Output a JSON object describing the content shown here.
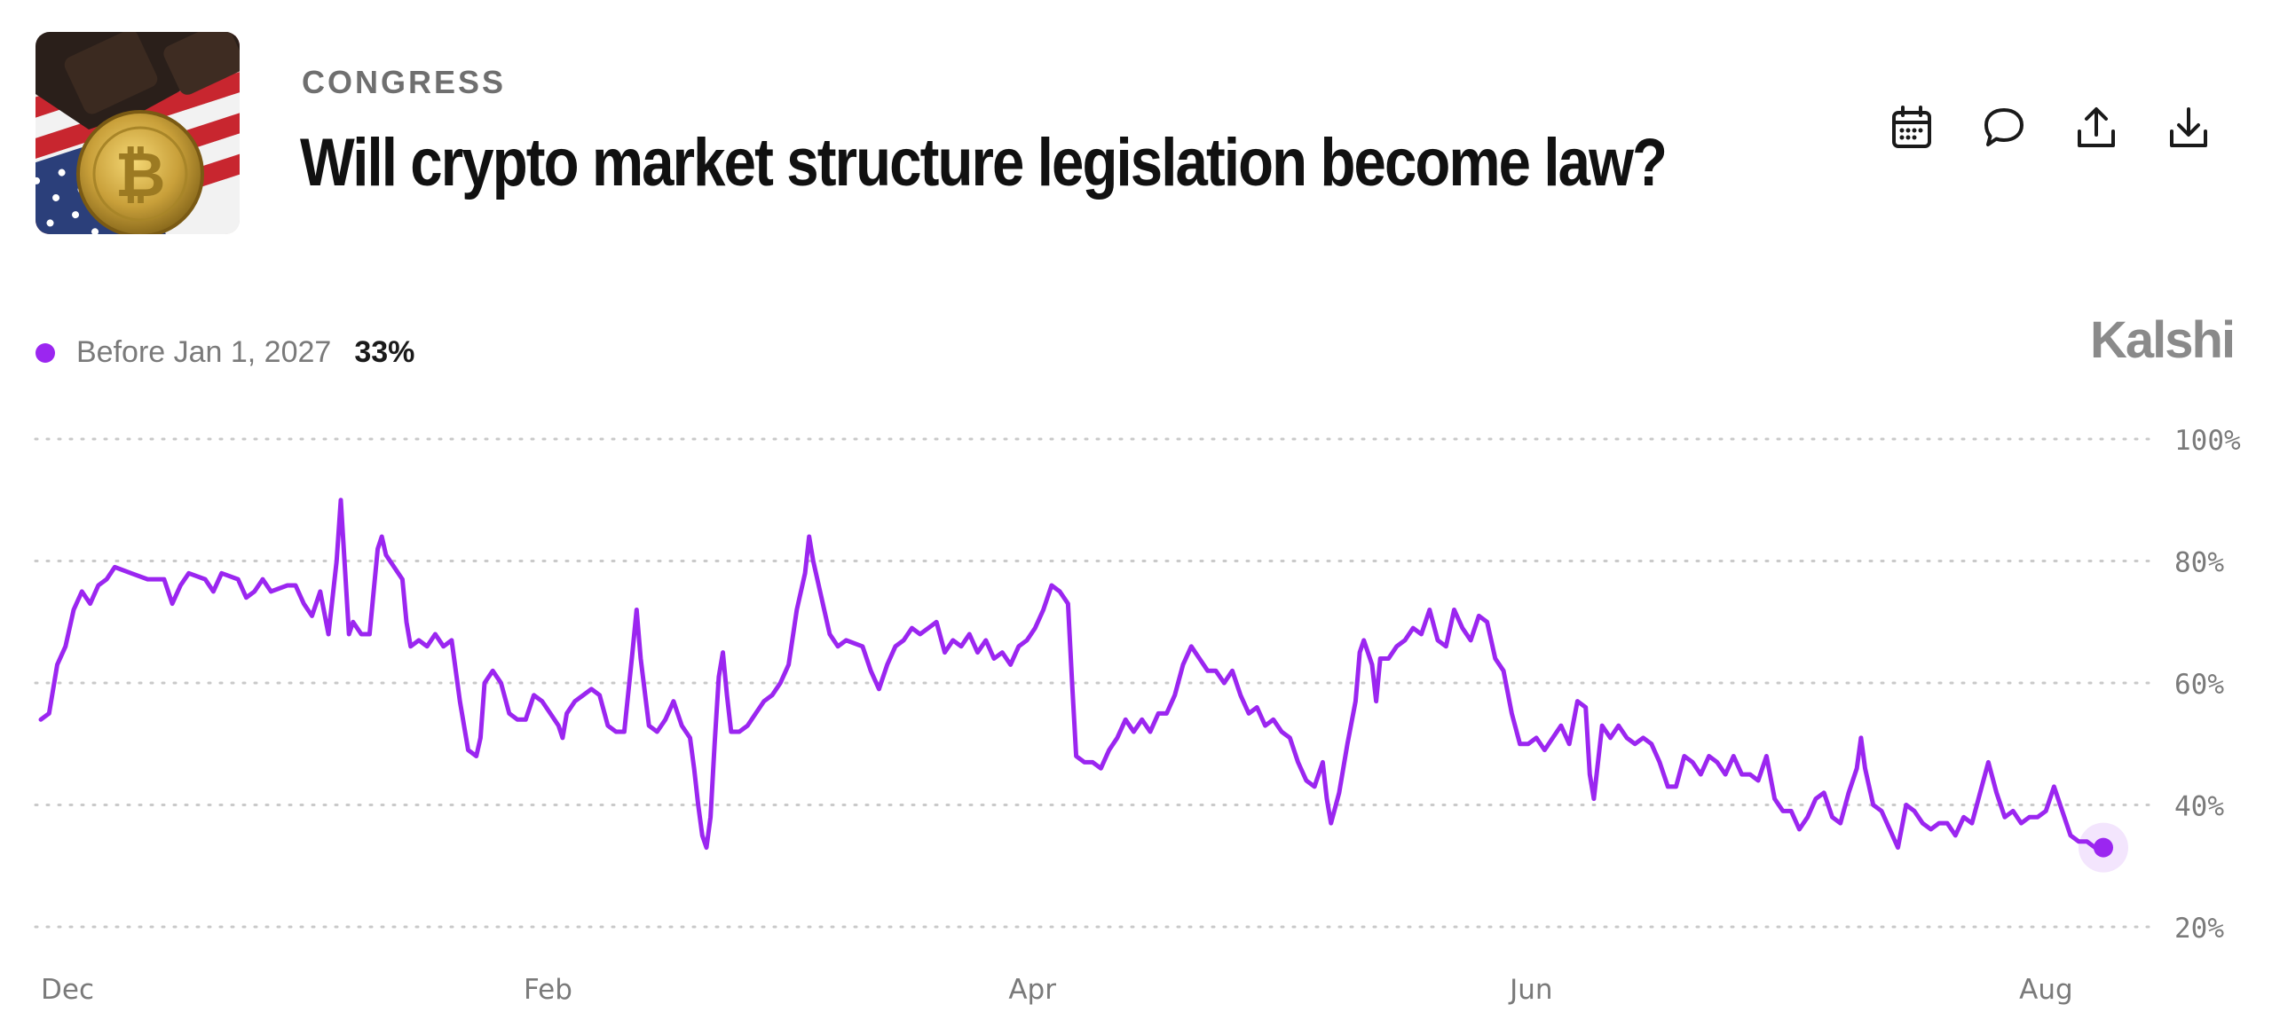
{
  "header": {
    "category": "CONGRESS",
    "title": "Will crypto market structure legislation become law?",
    "thumbnail_icon": "bitcoin-gavel-flag-image"
  },
  "actions": [
    {
      "name": "calendar-icon"
    },
    {
      "name": "comment-icon"
    },
    {
      "name": "share-icon"
    },
    {
      "name": "download-icon"
    }
  ],
  "legend": {
    "label": "Before Jan 1, 2027",
    "value": "33%",
    "color": "#9b26f0"
  },
  "brand": "Kalshi",
  "chart_data": {
    "type": "line",
    "title": "",
    "xlabel": "",
    "ylabel": "",
    "y_ticks": [
      "100%",
      "80%",
      "60%",
      "40%",
      "20%"
    ],
    "y_tick_values": [
      100,
      80,
      60,
      40,
      20
    ],
    "x_ticks": [
      "Dec",
      "Feb",
      "Apr",
      "Jun",
      "Aug"
    ],
    "x_tick_days": [
      0,
      62,
      121,
      182,
      244
    ],
    "ylim": [
      20,
      100
    ],
    "xlim_days": [
      0,
      251
    ],
    "grid": "horizontal-dotted",
    "legend_position": "top-left",
    "series": [
      {
        "name": "Before Jan 1, 2027",
        "color": "#9b26f0",
        "points": [
          [
            0,
            54
          ],
          [
            1,
            55
          ],
          [
            2,
            63
          ],
          [
            3,
            66
          ],
          [
            4,
            72
          ],
          [
            5,
            75
          ],
          [
            6,
            73
          ],
          [
            7,
            76
          ],
          [
            8,
            77
          ],
          [
            9,
            79
          ],
          [
            11,
            78
          ],
          [
            13,
            77
          ],
          [
            15,
            77
          ],
          [
            16,
            73
          ],
          [
            17,
            76
          ],
          [
            18,
            78
          ],
          [
            20,
            77
          ],
          [
            21,
            75
          ],
          [
            22,
            78
          ],
          [
            24,
            77
          ],
          [
            25,
            74
          ],
          [
            26,
            75
          ],
          [
            27,
            77
          ],
          [
            28,
            75
          ],
          [
            30,
            76
          ],
          [
            31,
            76
          ],
          [
            32,
            73
          ],
          [
            33,
            71
          ],
          [
            34,
            75
          ],
          [
            35,
            68
          ],
          [
            36,
            80
          ],
          [
            36.5,
            90
          ],
          [
            37,
            79
          ],
          [
            37.5,
            68
          ],
          [
            38,
            70
          ],
          [
            39,
            68
          ],
          [
            40,
            68
          ],
          [
            41,
            82
          ],
          [
            41.5,
            84
          ],
          [
            42,
            81
          ],
          [
            43,
            79
          ],
          [
            44,
            77
          ],
          [
            44.5,
            70
          ],
          [
            45,
            66
          ],
          [
            46,
            67
          ],
          [
            47,
            66
          ],
          [
            48,
            68
          ],
          [
            49,
            66
          ],
          [
            50,
            67
          ],
          [
            51,
            57
          ],
          [
            52,
            49
          ],
          [
            53,
            48
          ],
          [
            53.5,
            51
          ],
          [
            54,
            60
          ],
          [
            55,
            62
          ],
          [
            56,
            60
          ],
          [
            57,
            55
          ],
          [
            58,
            54
          ],
          [
            59,
            54
          ],
          [
            60,
            58
          ],
          [
            61,
            57
          ],
          [
            62,
            55
          ],
          [
            63,
            53
          ],
          [
            63.5,
            51
          ],
          [
            64,
            55
          ],
          [
            65,
            57
          ],
          [
            66,
            58
          ],
          [
            67,
            59
          ],
          [
            68,
            58
          ],
          [
            69,
            53
          ],
          [
            70,
            52
          ],
          [
            71,
            52
          ],
          [
            72,
            65
          ],
          [
            72.5,
            72
          ],
          [
            73,
            64
          ],
          [
            74,
            53
          ],
          [
            75,
            52
          ],
          [
            76,
            54
          ],
          [
            77,
            57
          ],
          [
            78,
            53
          ],
          [
            79,
            51
          ],
          [
            79.5,
            46
          ],
          [
            80,
            40
          ],
          [
            80.5,
            35
          ],
          [
            81,
            33
          ],
          [
            81.5,
            38
          ],
          [
            82,
            50
          ],
          [
            82.5,
            61
          ],
          [
            83,
            65
          ],
          [
            83.5,
            58
          ],
          [
            84,
            52
          ],
          [
            85,
            52
          ],
          [
            86,
            53
          ],
          [
            87,
            55
          ],
          [
            88,
            57
          ],
          [
            89,
            58
          ],
          [
            90,
            60
          ],
          [
            91,
            63
          ],
          [
            92,
            72
          ],
          [
            93,
            78
          ],
          [
            93.5,
            84
          ],
          [
            94,
            80
          ],
          [
            95,
            74
          ],
          [
            96,
            68
          ],
          [
            97,
            66
          ],
          [
            98,
            67
          ],
          [
            100,
            66
          ],
          [
            101,
            62
          ],
          [
            102,
            59
          ],
          [
            103,
            63
          ],
          [
            104,
            66
          ],
          [
            105,
            67
          ],
          [
            106,
            69
          ],
          [
            107,
            68
          ],
          [
            108,
            69
          ],
          [
            109,
            70
          ],
          [
            110,
            65
          ],
          [
            111,
            67
          ],
          [
            112,
            66
          ],
          [
            113,
            68
          ],
          [
            114,
            65
          ],
          [
            115,
            67
          ],
          [
            116,
            64
          ],
          [
            117,
            65
          ],
          [
            118,
            63
          ],
          [
            119,
            66
          ],
          [
            120,
            67
          ],
          [
            121,
            69
          ],
          [
            122,
            72
          ],
          [
            123,
            76
          ],
          [
            124,
            75
          ],
          [
            125,
            73
          ],
          [
            125.5,
            60
          ],
          [
            126,
            48
          ],
          [
            127,
            47
          ],
          [
            128,
            47
          ],
          [
            129,
            46
          ],
          [
            130,
            49
          ],
          [
            131,
            51
          ],
          [
            132,
            54
          ],
          [
            133,
            52
          ],
          [
            134,
            54
          ],
          [
            135,
            52
          ],
          [
            136,
            55
          ],
          [
            137,
            55
          ],
          [
            138,
            58
          ],
          [
            139,
            63
          ],
          [
            140,
            66
          ],
          [
            141,
            64
          ],
          [
            142,
            62
          ],
          [
            143,
            62
          ],
          [
            144,
            60
          ],
          [
            145,
            62
          ],
          [
            146,
            58
          ],
          [
            147,
            55
          ],
          [
            148,
            56
          ],
          [
            149,
            53
          ],
          [
            150,
            54
          ],
          [
            151,
            52
          ],
          [
            152,
            51
          ],
          [
            153,
            47
          ],
          [
            154,
            44
          ],
          [
            155,
            43
          ],
          [
            156,
            47
          ],
          [
            156.5,
            41
          ],
          [
            157,
            37
          ],
          [
            158,
            42
          ],
          [
            159,
            50
          ],
          [
            160,
            57
          ],
          [
            160.5,
            65
          ],
          [
            161,
            67
          ],
          [
            162,
            63
          ],
          [
            162.5,
            57
          ],
          [
            163,
            64
          ],
          [
            164,
            64
          ],
          [
            165,
            66
          ],
          [
            166,
            67
          ],
          [
            167,
            69
          ],
          [
            168,
            68
          ],
          [
            169,
            72
          ],
          [
            170,
            67
          ],
          [
            171,
            66
          ],
          [
            172,
            72
          ],
          [
            173,
            69
          ],
          [
            174,
            67
          ],
          [
            175,
            71
          ],
          [
            176,
            70
          ],
          [
            177,
            64
          ],
          [
            178,
            62
          ],
          [
            179,
            55
          ],
          [
            180,
            50
          ],
          [
            181,
            50
          ],
          [
            182,
            51
          ],
          [
            183,
            49
          ],
          [
            184,
            51
          ],
          [
            185,
            53
          ],
          [
            186,
            50
          ],
          [
            187,
            57
          ],
          [
            188,
            56
          ],
          [
            188.5,
            45
          ],
          [
            189,
            41
          ],
          [
            190,
            53
          ],
          [
            191,
            51
          ],
          [
            192,
            53
          ],
          [
            193,
            51
          ],
          [
            194,
            50
          ],
          [
            195,
            51
          ],
          [
            196,
            50
          ],
          [
            197,
            47
          ],
          [
            198,
            43
          ],
          [
            199,
            43
          ],
          [
            200,
            48
          ],
          [
            201,
            47
          ],
          [
            202,
            45
          ],
          [
            203,
            48
          ],
          [
            204,
            47
          ],
          [
            205,
            45
          ],
          [
            206,
            48
          ],
          [
            207,
            45
          ],
          [
            208,
            45
          ],
          [
            209,
            44
          ],
          [
            210,
            48
          ],
          [
            211,
            41
          ],
          [
            212,
            39
          ],
          [
            213,
            39
          ],
          [
            214,
            36
          ],
          [
            215,
            38
          ],
          [
            216,
            41
          ],
          [
            217,
            42
          ],
          [
            218,
            38
          ],
          [
            219,
            37
          ],
          [
            220,
            42
          ],
          [
            221,
            46
          ],
          [
            221.5,
            51
          ],
          [
            222,
            46
          ],
          [
            223,
            40
          ],
          [
            224,
            39
          ],
          [
            225,
            36
          ],
          [
            226,
            33
          ],
          [
            227,
            40
          ],
          [
            228,
            39
          ],
          [
            229,
            37
          ],
          [
            230,
            36
          ],
          [
            231,
            37
          ],
          [
            232,
            37
          ],
          [
            233,
            35
          ],
          [
            234,
            38
          ],
          [
            235,
            37
          ],
          [
            236,
            42
          ],
          [
            237,
            47
          ],
          [
            238,
            42
          ],
          [
            239,
            38
          ],
          [
            240,
            39
          ],
          [
            241,
            37
          ],
          [
            242,
            38
          ],
          [
            243,
            38
          ],
          [
            244,
            39
          ],
          [
            245,
            43
          ],
          [
            246,
            39
          ],
          [
            247,
            35
          ],
          [
            248,
            34
          ],
          [
            249,
            34
          ],
          [
            250,
            33
          ],
          [
            251,
            33
          ]
        ]
      }
    ]
  }
}
